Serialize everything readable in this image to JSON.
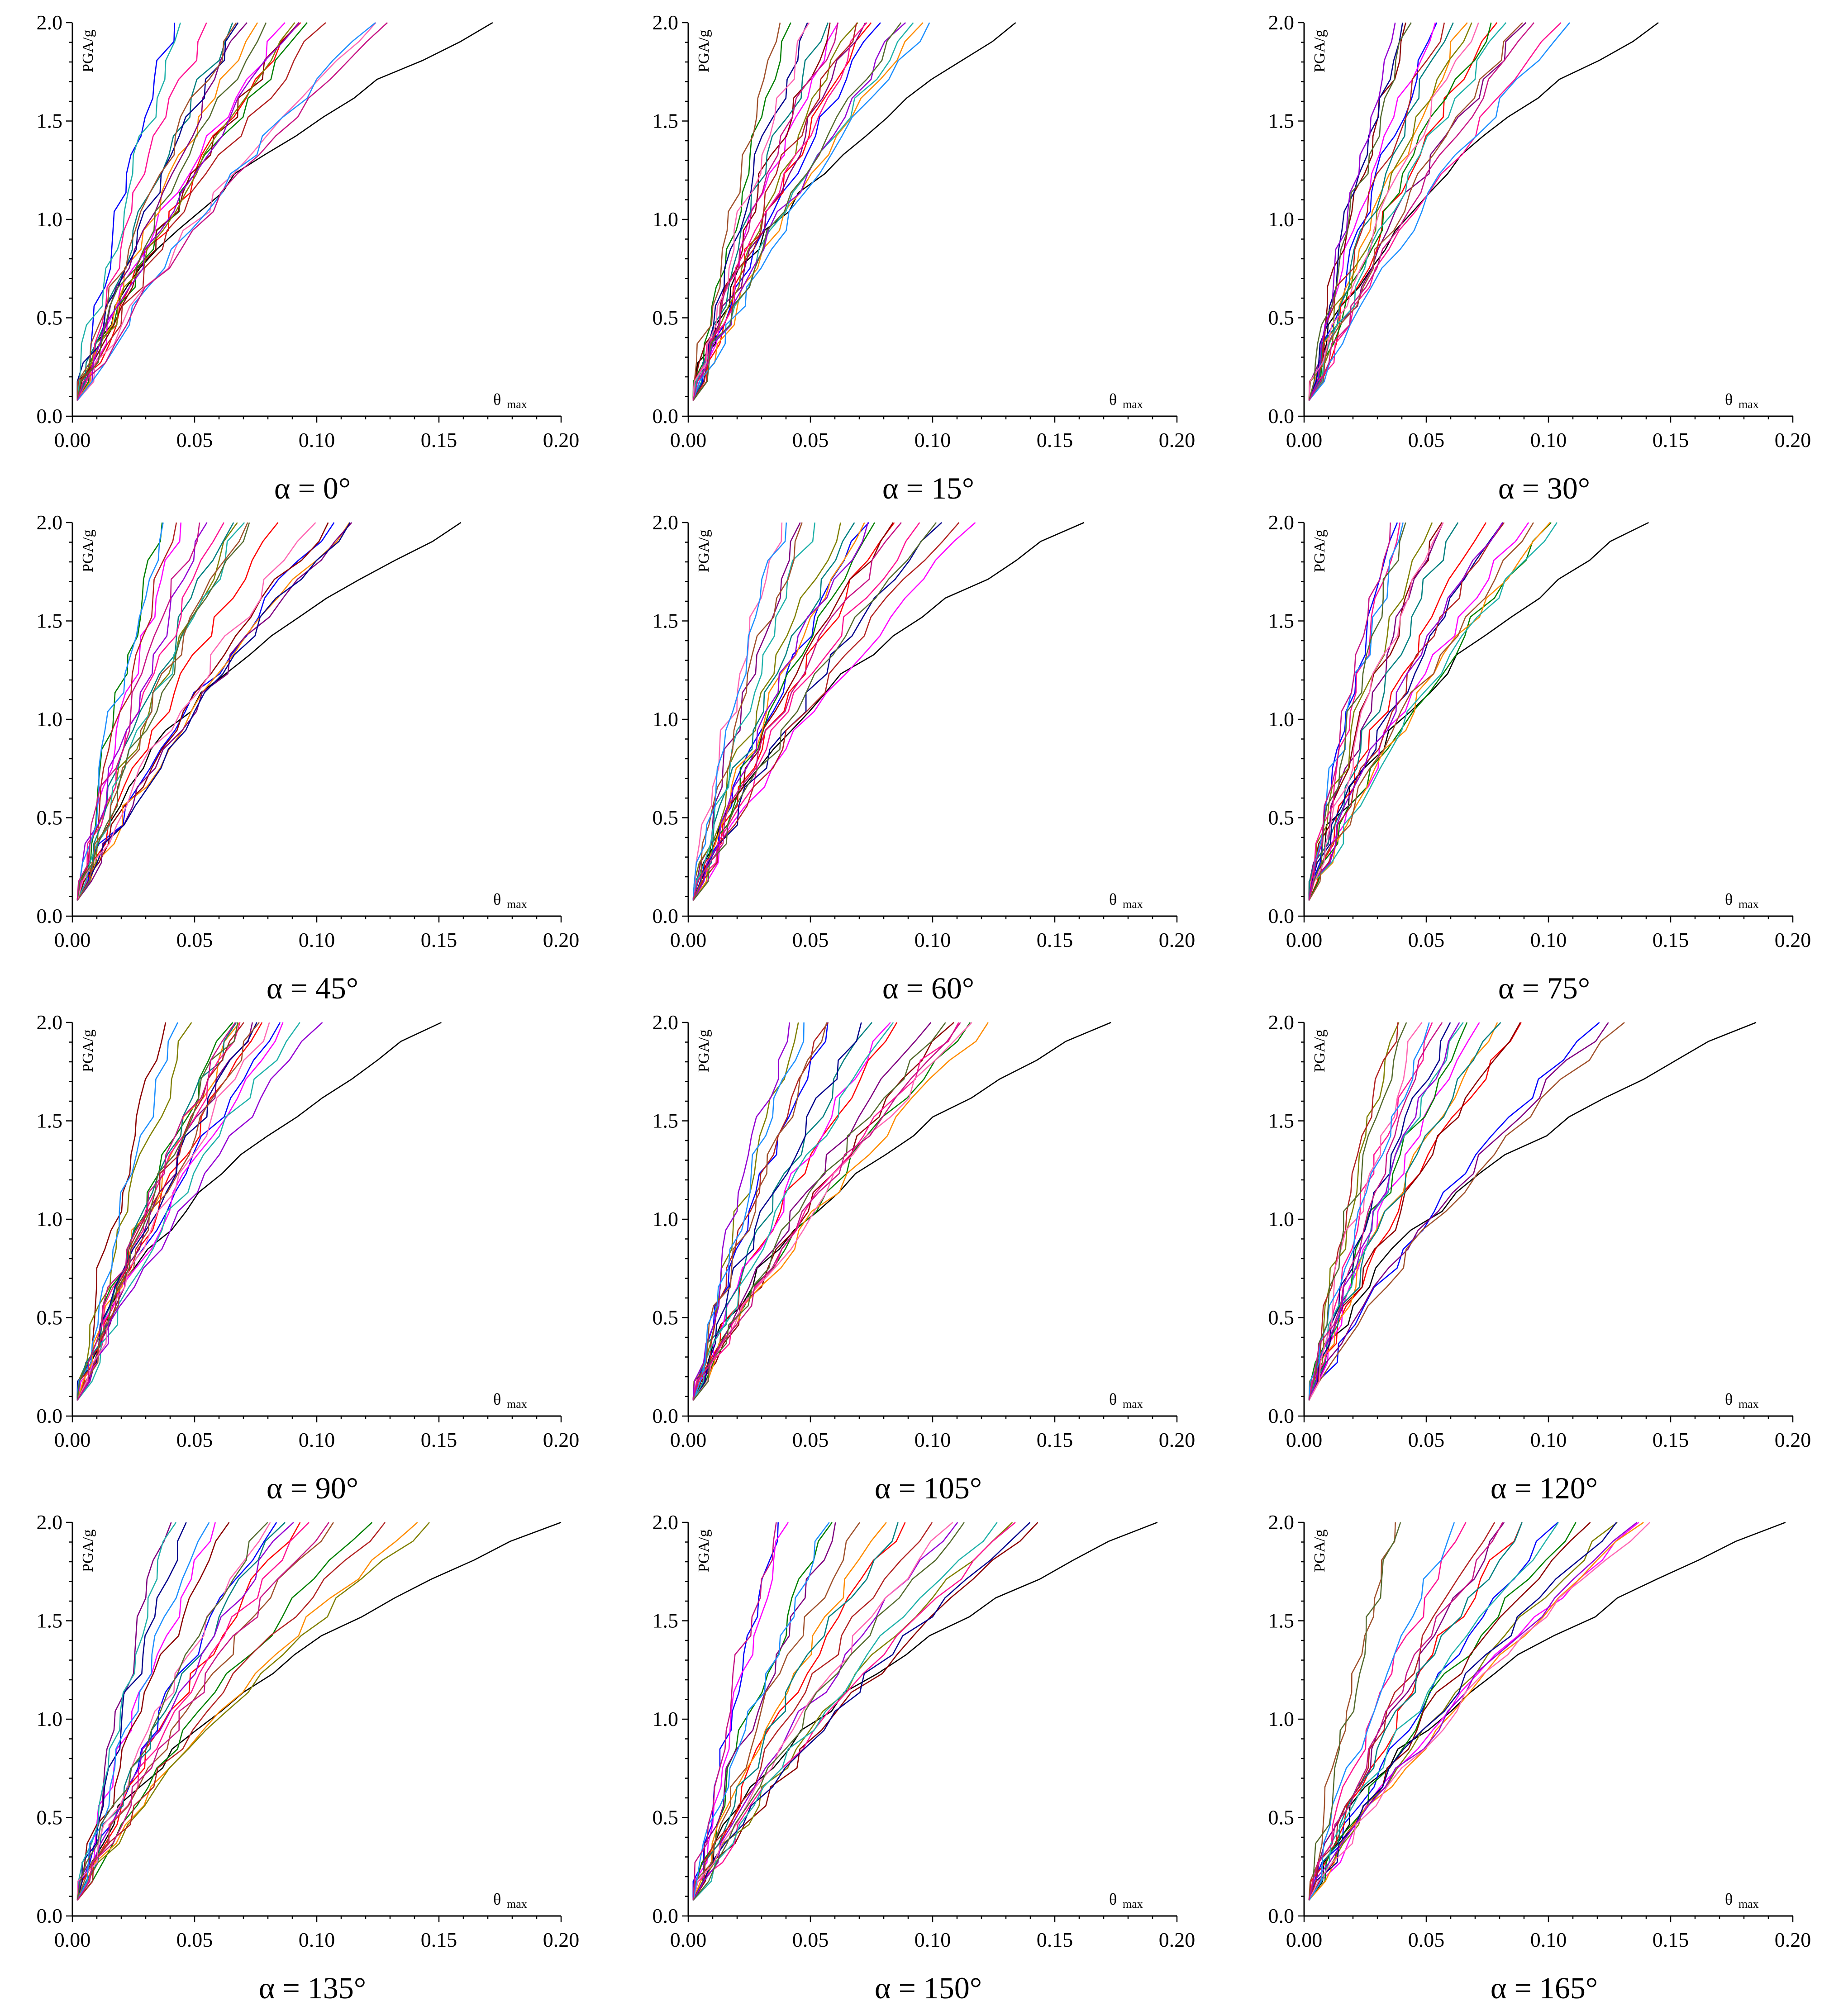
{
  "figure": {
    "alpha_symbol": "α",
    "equals": " = "
  },
  "chart_data": [
    {
      "type": "line",
      "angle": "0°",
      "title": "α = 0°",
      "xlabel": "θ",
      "xlabel_sub": "max",
      "ylabel": "PGA/g",
      "xlim": [
        0,
        0.2
      ],
      "ylim": [
        0,
        2.0
      ],
      "xticks": [
        "0.00",
        "0.05",
        "0.10",
        "0.15",
        "0.20"
      ],
      "yticks": [
        "0.0",
        "0.5",
        "1.0",
        "1.5",
        "2.0"
      ],
      "longest_curve_theta_at_2g": 0.172
    },
    {
      "type": "line",
      "angle": "15°",
      "title": "α = 15°",
      "xlabel": "θ",
      "xlabel_sub": "max",
      "ylabel": "PGA/g",
      "xlim": [
        0,
        0.2
      ],
      "ylim": [
        0,
        2.0
      ],
      "xticks": [
        "0.00",
        "0.05",
        "0.10",
        "0.15",
        "0.20"
      ],
      "yticks": [
        "0.0",
        "0.5",
        "1.0",
        "1.5",
        "2.0"
      ],
      "longest_curve_theta_at_2g": 0.134
    },
    {
      "type": "line",
      "angle": "30°",
      "title": "α = 30°",
      "xlabel": "θ",
      "xlabel_sub": "max",
      "ylabel": "PGA/g",
      "xlim": [
        0,
        0.2
      ],
      "ylim": [
        0,
        2.0
      ],
      "xticks": [
        "0.00",
        "0.05",
        "0.10",
        "0.15",
        "0.20"
      ],
      "yticks": [
        "0.0",
        "0.5",
        "1.0",
        "1.5",
        "2.0"
      ],
      "longest_curve_theta_at_2g": 0.145
    },
    {
      "type": "line",
      "angle": "45°",
      "title": "α = 45°",
      "xlabel": "θ",
      "xlabel_sub": "max",
      "ylabel": "PGA/g",
      "xlim": [
        0,
        0.2
      ],
      "ylim": [
        0,
        2.0
      ],
      "xticks": [
        "0.00",
        "0.05",
        "0.10",
        "0.15",
        "0.20"
      ],
      "yticks": [
        "0.0",
        "0.5",
        "1.0",
        "1.5",
        "2.0"
      ],
      "longest_curve_theta_at_2g": 0.159
    },
    {
      "type": "line",
      "angle": "60°",
      "title": "α = 60°",
      "xlabel": "θ",
      "xlabel_sub": "max",
      "ylabel": "PGA/g",
      "xlim": [
        0,
        0.2
      ],
      "ylim": [
        0,
        2.0
      ],
      "xticks": [
        "0.00",
        "0.05",
        "0.10",
        "0.15",
        "0.20"
      ],
      "yticks": [
        "0.0",
        "0.5",
        "1.0",
        "1.5",
        "2.0"
      ],
      "longest_curve_theta_at_2g": 0.162
    },
    {
      "type": "line",
      "angle": "75°",
      "title": "α = 75°",
      "xlabel": "θ",
      "xlabel_sub": "max",
      "ylabel": "PGA/g",
      "xlim": [
        0,
        0.2
      ],
      "ylim": [
        0,
        2.0
      ],
      "xticks": [
        "0.00",
        "0.05",
        "0.10",
        "0.15",
        "0.20"
      ],
      "yticks": [
        "0.0",
        "0.5",
        "1.0",
        "1.5",
        "2.0"
      ],
      "longest_curve_theta_at_2g": 0.141
    },
    {
      "type": "line",
      "angle": "90°",
      "title": "α = 90°",
      "xlabel": "θ",
      "xlabel_sub": "max",
      "ylabel": "PGA/g",
      "xlim": [
        0,
        0.2
      ],
      "ylim": [
        0,
        2.0
      ],
      "xticks": [
        "0.00",
        "0.05",
        "0.10",
        "0.15",
        "0.20"
      ],
      "yticks": [
        "0.0",
        "0.5",
        "1.0",
        "1.5",
        "2.0"
      ],
      "longest_curve_theta_at_2g": 0.151
    },
    {
      "type": "line",
      "angle": "105°",
      "title": "α = 105°",
      "xlabel": "θ",
      "xlabel_sub": "max",
      "ylabel": "PGA/g",
      "xlim": [
        0,
        0.2
      ],
      "ylim": [
        0,
        2.0
      ],
      "xticks": [
        "0.00",
        "0.05",
        "0.10",
        "0.15",
        "0.20"
      ],
      "yticks": [
        "0.0",
        "0.5",
        "1.0",
        "1.5",
        "2.0"
      ],
      "longest_curve_theta_at_2g": 0.173
    },
    {
      "type": "line",
      "angle": "120°",
      "title": "α = 120°",
      "xlabel": "θ",
      "xlabel_sub": "max",
      "ylabel": "PGA/g",
      "xlim": [
        0,
        0.2
      ],
      "ylim": [
        0,
        2.0
      ],
      "xticks": [
        "0.00",
        "0.05",
        "0.10",
        "0.15",
        "0.20"
      ],
      "yticks": [
        "0.0",
        "0.5",
        "1.0",
        "1.5",
        "2.0"
      ],
      "longest_curve_theta_at_2g": 0.185
    },
    {
      "type": "line",
      "angle": "135°",
      "title": "α = 135°",
      "xlabel": "θ",
      "xlabel_sub": "max",
      "ylabel": "PGA/g",
      "xlim": [
        0,
        0.2
      ],
      "ylim": [
        0,
        2.0
      ],
      "xticks": [
        "0.00",
        "0.05",
        "0.10",
        "0.15",
        "0.20"
      ],
      "yticks": [
        "0.0",
        "0.5",
        "1.0",
        "1.5",
        "2.0"
      ],
      "longest_curve_theta_at_2g": 0.2
    },
    {
      "type": "line",
      "angle": "150°",
      "title": "α = 150°",
      "xlabel": "θ",
      "xlabel_sub": "max",
      "ylabel": "PGA/g",
      "xlim": [
        0,
        0.2
      ],
      "ylim": [
        0,
        2.0
      ],
      "xticks": [
        "0.00",
        "0.05",
        "0.10",
        "0.15",
        "0.20"
      ],
      "yticks": [
        "0.0",
        "0.5",
        "1.0",
        "1.5",
        "2.0"
      ],
      "longest_curve_theta_at_2g": 0.192
    },
    {
      "type": "line",
      "angle": "165°",
      "title": "α = 165°",
      "xlabel": "θ",
      "xlabel_sub": "max",
      "ylabel": "PGA/g",
      "xlim": [
        0,
        0.2
      ],
      "ylim": [
        0,
        2.0
      ],
      "xticks": [
        "0.00",
        "0.05",
        "0.10",
        "0.15",
        "0.20"
      ],
      "yticks": [
        "0.0",
        "0.5",
        "1.0",
        "1.5",
        "2.0"
      ],
      "longest_curve_theta_at_2g": 0.197
    }
  ],
  "series_colors": [
    "#000000",
    "#0000ff",
    "#ff0000",
    "#ff00ff",
    "#008000",
    "#8b0000",
    "#ff8c00",
    "#800080",
    "#808000",
    "#008080",
    "#ff1493",
    "#00008b",
    "#b22222",
    "#20b2aa",
    "#9400d3",
    "#a0522d",
    "#ff69b4",
    "#1e90ff",
    "#556b2f",
    "#c71585"
  ]
}
